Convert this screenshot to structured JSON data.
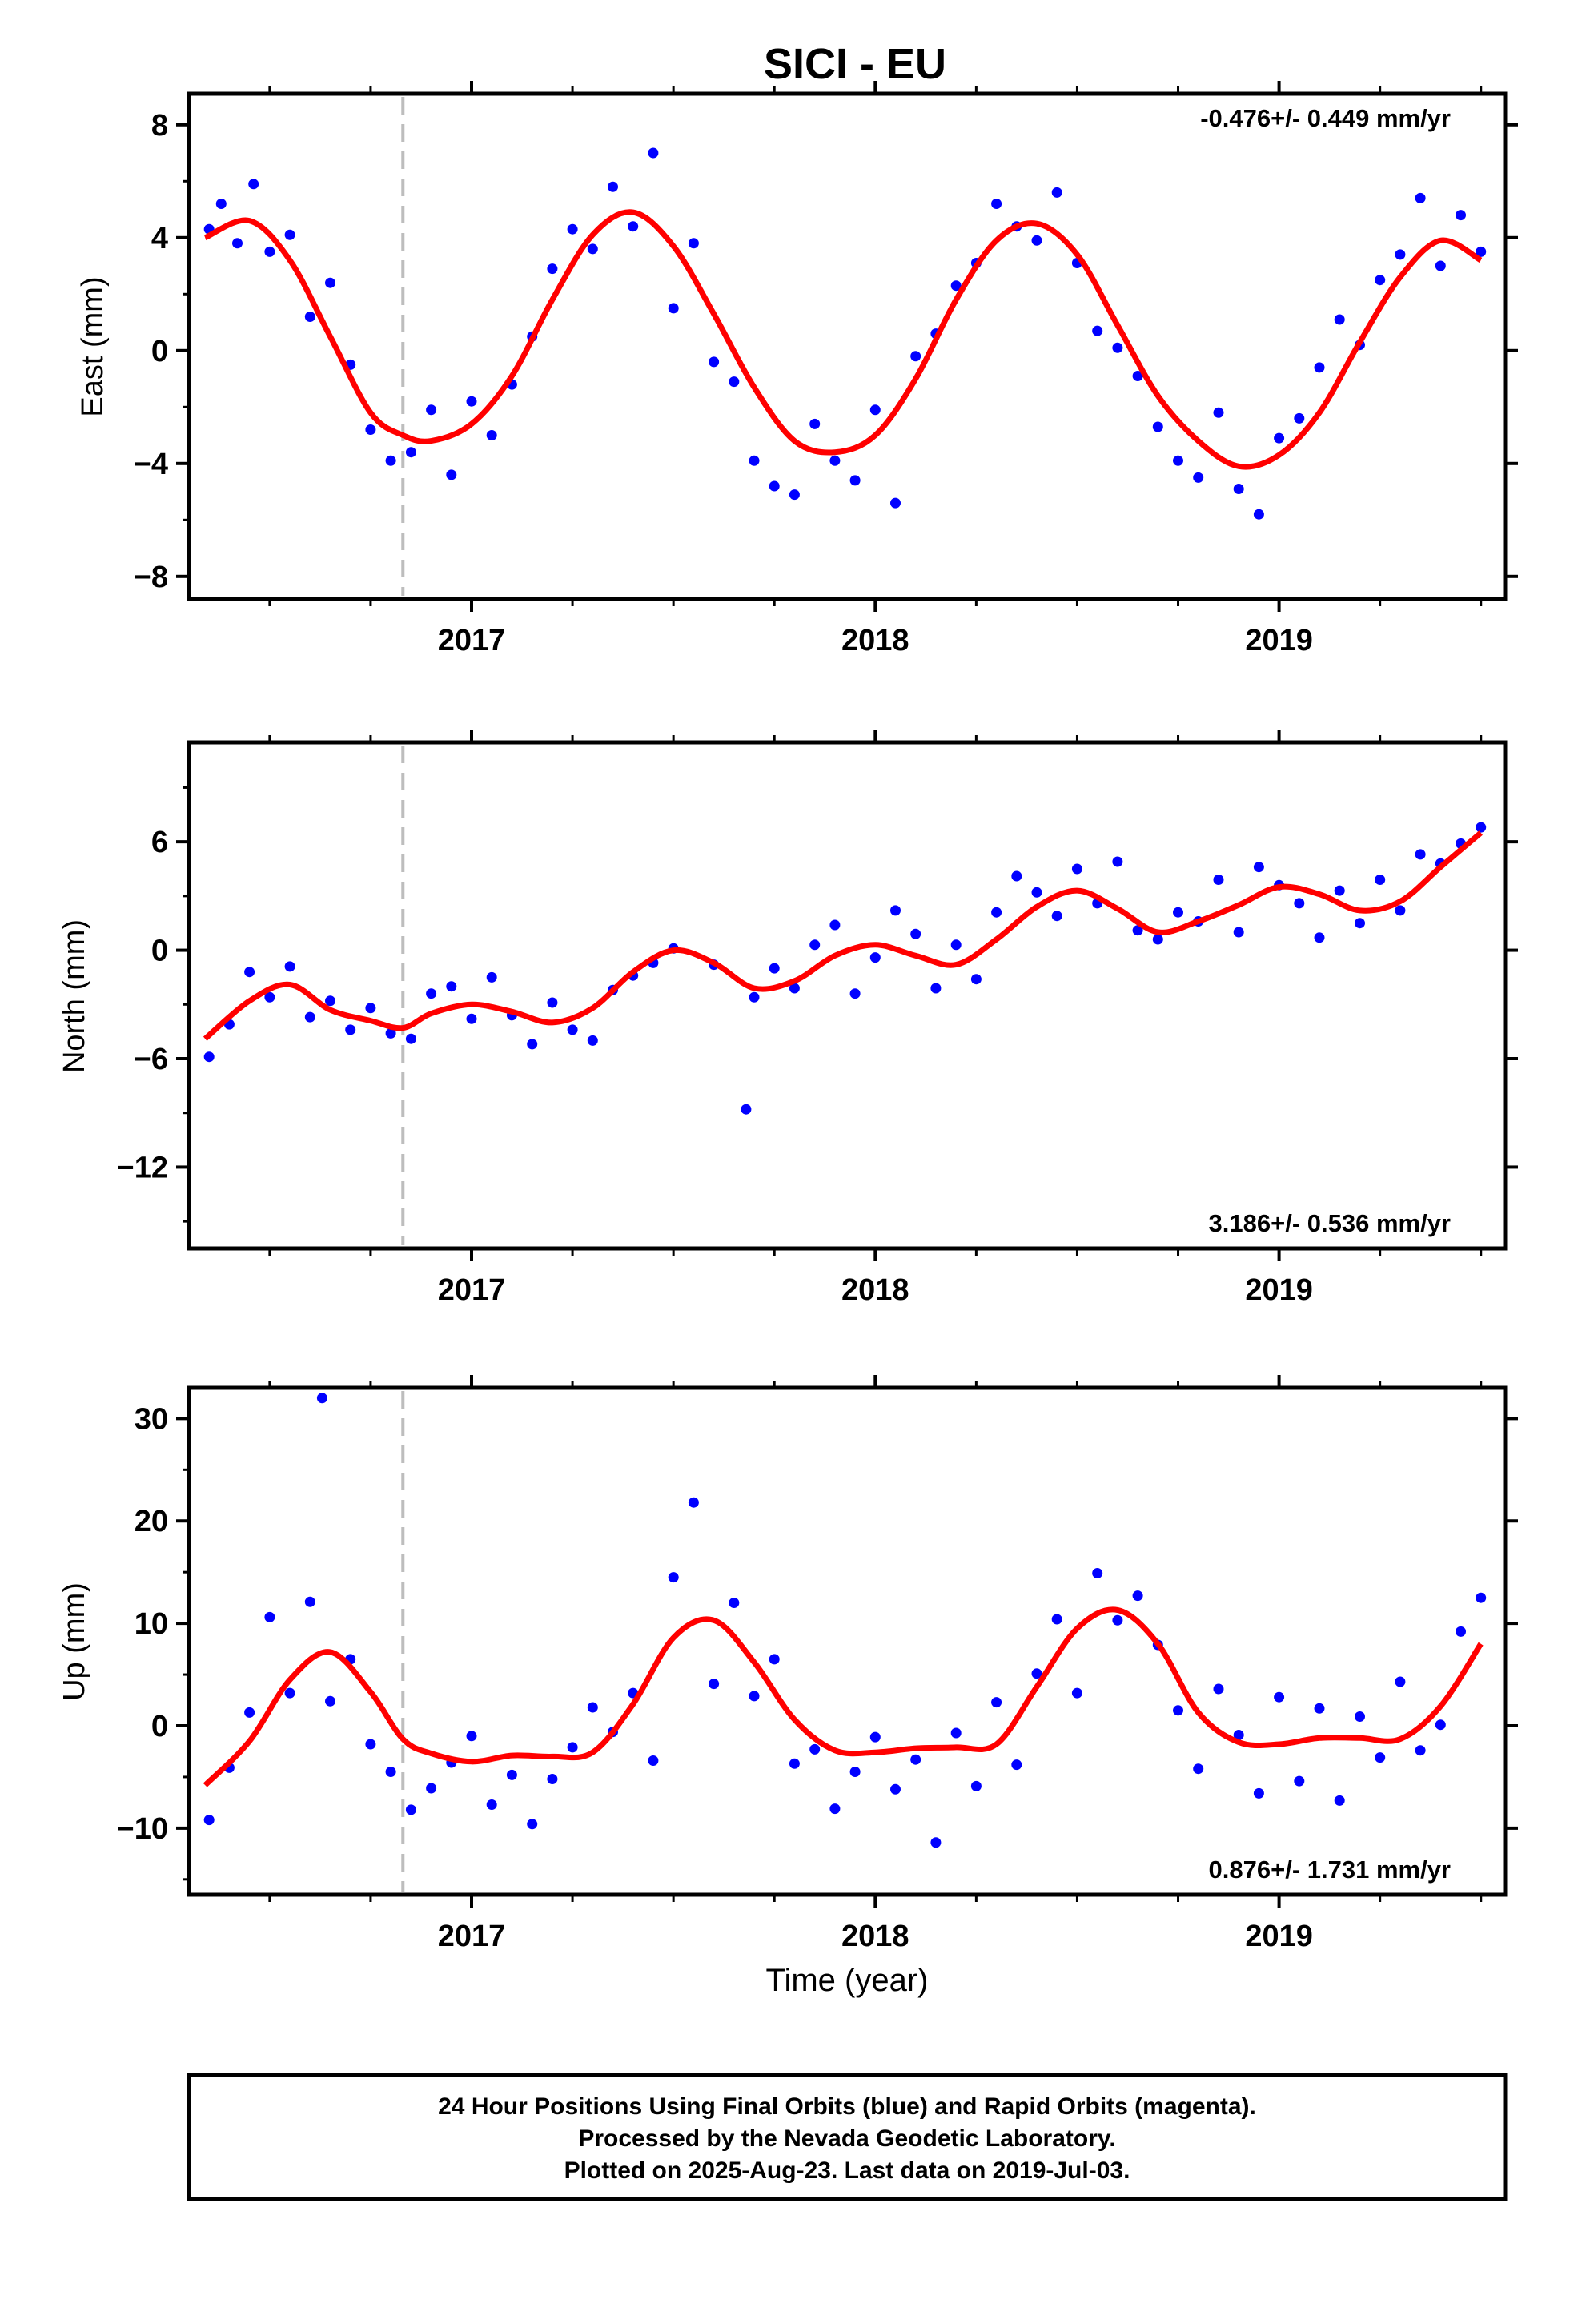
{
  "title": "SICI - EU",
  "xlabel": "Time (year)",
  "footer": {
    "line1": "24 Hour Positions Using Final Orbits (blue) and Rapid Orbits (magenta).",
    "line2": "Processed by the Nevada Geodetic Laboratory.",
    "line3": "Plotted on 2025-Aug-23. Last data on 2019-Jul-03."
  },
  "colors": {
    "points": "#0000ff",
    "model": "#ff0000",
    "event_line": "#bdbdbd",
    "frame": "#000000"
  },
  "chart_data": [
    {
      "type": "scatter",
      "component": "East",
      "ylabel": "East (mm)",
      "rate_label": "-0.476+/- 0.449 mm/yr",
      "rate_position": "top-right",
      "xlim": [
        2016.3,
        2019.56
      ],
      "ylim": [
        -8.8,
        9.1
      ],
      "x_ticks": [
        2017,
        2018,
        2019
      ],
      "y_ticks": [
        -8,
        -4,
        0,
        4,
        8
      ],
      "event_line_x": 2016.83,
      "model_curve": {
        "x": [
          2016.34,
          2016.45,
          2016.55,
          2016.65,
          2016.75,
          2016.83,
          2016.9,
          2017.0,
          2017.1,
          2017.2,
          2017.3,
          2017.4,
          2017.5,
          2017.6,
          2017.7,
          2017.8,
          2017.9,
          2018.0,
          2018.1,
          2018.2,
          2018.3,
          2018.4,
          2018.5,
          2018.6,
          2018.7,
          2018.8,
          2018.9,
          2019.0,
          2019.1,
          2019.2,
          2019.3,
          2019.4,
          2019.5
        ],
        "y": [
          4.0,
          4.6,
          3.2,
          0.5,
          -2.2,
          -3.0,
          -3.2,
          -2.6,
          -0.9,
          1.8,
          4.1,
          4.9,
          3.7,
          1.3,
          -1.3,
          -3.2,
          -3.6,
          -3.0,
          -1.0,
          1.8,
          3.9,
          4.5,
          3.4,
          0.9,
          -1.6,
          -3.2,
          -4.1,
          -3.7,
          -2.2,
          0.3,
          2.6,
          3.9,
          3.2
        ]
      },
      "series": [
        {
          "name": "Final Orbits",
          "x": [
            2016.35,
            2016.38,
            2016.42,
            2016.46,
            2016.5,
            2016.55,
            2016.6,
            2016.65,
            2016.7,
            2016.75,
            2016.8,
            2016.85,
            2016.9,
            2016.95,
            2017.0,
            2017.05,
            2017.1,
            2017.15,
            2017.2,
            2017.25,
            2017.3,
            2017.35,
            2017.4,
            2017.45,
            2017.5,
            2017.55,
            2017.6,
            2017.65,
            2017.7,
            2017.75,
            2017.8,
            2017.85,
            2017.9,
            2017.95,
            2018.0,
            2018.05,
            2018.1,
            2018.15,
            2018.2,
            2018.25,
            2018.3,
            2018.35,
            2018.4,
            2018.45,
            2018.5,
            2018.55,
            2018.6,
            2018.65,
            2018.7,
            2018.75,
            2018.8,
            2018.85,
            2018.9,
            2018.95,
            2019.0,
            2019.05,
            2019.1,
            2019.15,
            2019.2,
            2019.25,
            2019.3,
            2019.35,
            2019.4,
            2019.45,
            2019.5
          ],
          "y": [
            4.3,
            5.2,
            3.8,
            5.9,
            3.5,
            4.1,
            1.2,
            2.4,
            -0.5,
            -2.8,
            -3.9,
            -3.6,
            -2.1,
            -4.4,
            -1.8,
            -3.0,
            -1.2,
            0.5,
            2.9,
            4.3,
            3.6,
            5.8,
            4.4,
            7.0,
            1.5,
            3.8,
            -0.4,
            -1.1,
            -3.9,
            -4.8,
            -5.1,
            -2.6,
            -3.9,
            -4.6,
            -2.1,
            -5.4,
            -0.2,
            0.6,
            2.3,
            3.1,
            5.2,
            4.4,
            3.9,
            5.6,
            3.1,
            0.7,
            0.1,
            -0.9,
            -2.7,
            -3.9,
            -4.5,
            -2.2,
            -4.9,
            -5.8,
            -3.1,
            -2.4,
            -0.6,
            1.1,
            0.2,
            2.5,
            3.4,
            5.4,
            3.0,
            4.8,
            3.5
          ]
        }
      ]
    },
    {
      "type": "scatter",
      "component": "North",
      "ylabel": "North (mm)",
      "rate_label": "3.186+/- 0.536 mm/yr",
      "rate_position": "bottom-right",
      "xlim": [
        2016.3,
        2019.56
      ],
      "ylim": [
        -16.5,
        11.5
      ],
      "x_ticks": [
        2017,
        2018,
        2019
      ],
      "y_ticks": [
        -12,
        -6,
        0,
        6
      ],
      "event_line_x": 2016.83,
      "model_curve": {
        "x": [
          2016.34,
          2016.45,
          2016.55,
          2016.65,
          2016.75,
          2016.83,
          2016.9,
          2017.0,
          2017.1,
          2017.2,
          2017.3,
          2017.4,
          2017.5,
          2017.6,
          2017.7,
          2017.8,
          2017.9,
          2018.0,
          2018.1,
          2018.2,
          2018.3,
          2018.4,
          2018.5,
          2018.6,
          2018.7,
          2018.8,
          2018.9,
          2019.0,
          2019.1,
          2019.2,
          2019.3,
          2019.4,
          2019.5
        ],
        "y": [
          -4.9,
          -2.8,
          -1.9,
          -3.3,
          -3.9,
          -4.3,
          -3.5,
          -3.0,
          -3.4,
          -4.0,
          -3.2,
          -1.2,
          0.0,
          -0.7,
          -2.1,
          -1.7,
          -0.3,
          0.3,
          -0.3,
          -0.8,
          0.6,
          2.4,
          3.3,
          2.3,
          1.0,
          1.6,
          2.5,
          3.5,
          3.1,
          2.2,
          2.7,
          4.6,
          6.5
        ]
      },
      "series": [
        {
          "name": "Final Orbits",
          "x": [
            2016.35,
            2016.4,
            2016.45,
            2016.5,
            2016.55,
            2016.6,
            2016.65,
            2016.7,
            2016.75,
            2016.8,
            2016.85,
            2016.9,
            2016.95,
            2017.0,
            2017.05,
            2017.1,
            2017.15,
            2017.2,
            2017.25,
            2017.3,
            2017.35,
            2017.4,
            2017.45,
            2017.5,
            2017.6,
            2017.68,
            2017.7,
            2017.75,
            2017.8,
            2017.85,
            2017.9,
            2017.95,
            2018.0,
            2018.05,
            2018.1,
            2018.15,
            2018.2,
            2018.25,
            2018.3,
            2018.35,
            2018.4,
            2018.45,
            2018.5,
            2018.55,
            2018.6,
            2018.65,
            2018.7,
            2018.75,
            2018.8,
            2018.85,
            2018.9,
            2018.95,
            2019.0,
            2019.05,
            2019.1,
            2019.15,
            2019.2,
            2019.25,
            2019.3,
            2019.35,
            2019.4,
            2019.45,
            2019.5
          ],
          "y": [
            -5.9,
            -4.1,
            -1.2,
            -2.6,
            -0.9,
            -3.7,
            -2.8,
            -4.4,
            -3.2,
            -4.6,
            -4.9,
            -2.4,
            -2.0,
            -3.8,
            -1.5,
            -3.6,
            -5.2,
            -2.9,
            -4.4,
            -5.0,
            -2.2,
            -1.4,
            -0.7,
            0.1,
            -0.8,
            -8.8,
            -2.6,
            -1.0,
            -2.1,
            0.3,
            1.4,
            -2.4,
            -0.4,
            2.2,
            0.9,
            -2.1,
            0.3,
            -1.6,
            2.1,
            4.1,
            3.2,
            1.9,
            4.5,
            2.6,
            4.9,
            1.1,
            0.6,
            2.1,
            1.6,
            3.9,
            1.0,
            4.6,
            3.6,
            2.6,
            0.7,
            3.3,
            1.5,
            3.9,
            2.2,
            5.3,
            4.8,
            5.9,
            6.8
          ]
        }
      ]
    },
    {
      "type": "scatter",
      "component": "Up",
      "ylabel": "Up (mm)",
      "rate_label": "0.876+/- 1.731 mm/yr",
      "rate_position": "bottom-right",
      "xlim": [
        2016.3,
        2019.56
      ],
      "ylim": [
        -16.5,
        33.0
      ],
      "x_ticks": [
        2017,
        2018,
        2019
      ],
      "y_ticks": [
        -10,
        0,
        10,
        20,
        30
      ],
      "event_line_x": 2016.83,
      "model_curve": {
        "x": [
          2016.34,
          2016.45,
          2016.55,
          2016.65,
          2016.75,
          2016.83,
          2016.9,
          2017.0,
          2017.1,
          2017.2,
          2017.3,
          2017.4,
          2017.5,
          2017.6,
          2017.7,
          2017.8,
          2017.9,
          2018.0,
          2018.1,
          2018.2,
          2018.3,
          2018.4,
          2018.5,
          2018.6,
          2018.7,
          2018.8,
          2018.9,
          2019.0,
          2019.1,
          2019.2,
          2019.3,
          2019.4,
          2019.5
        ],
        "y": [
          -5.8,
          -1.5,
          4.5,
          7.2,
          3.3,
          -1.3,
          -2.7,
          -3.5,
          -2.9,
          -3.0,
          -2.6,
          2.1,
          8.6,
          10.3,
          6.2,
          0.6,
          -2.4,
          -2.6,
          -2.2,
          -2.1,
          -1.8,
          3.8,
          9.5,
          11.3,
          8.0,
          1.3,
          -1.6,
          -1.8,
          -1.2,
          -1.2,
          -1.3,
          1.9,
          8.0
        ]
      },
      "series": [
        {
          "name": "Final Orbits",
          "x": [
            2016.35,
            2016.4,
            2016.45,
            2016.5,
            2016.55,
            2016.6,
            2016.63,
            2016.65,
            2016.7,
            2016.75,
            2016.8,
            2016.85,
            2016.9,
            2016.95,
            2017.0,
            2017.05,
            2017.1,
            2017.15,
            2017.2,
            2017.25,
            2017.3,
            2017.35,
            2017.4,
            2017.45,
            2017.5,
            2017.55,
            2017.6,
            2017.65,
            2017.7,
            2017.75,
            2017.8,
            2017.85,
            2017.9,
            2017.95,
            2018.0,
            2018.05,
            2018.1,
            2018.15,
            2018.2,
            2018.25,
            2018.3,
            2018.35,
            2018.4,
            2018.45,
            2018.5,
            2018.55,
            2018.6,
            2018.65,
            2018.7,
            2018.75,
            2018.8,
            2018.85,
            2018.9,
            2018.95,
            2019.0,
            2019.05,
            2019.1,
            2019.15,
            2019.2,
            2019.25,
            2019.3,
            2019.35,
            2019.4,
            2019.45,
            2019.5
          ],
          "y": [
            -9.2,
            -4.1,
            1.3,
            10.6,
            3.2,
            12.1,
            32.0,
            2.4,
            6.5,
            -1.8,
            -4.5,
            -8.2,
            -6.1,
            -3.6,
            -1.0,
            -7.7,
            -4.8,
            -9.6,
            -5.2,
            -2.1,
            1.8,
            -0.6,
            3.2,
            -3.4,
            14.5,
            21.8,
            4.1,
            12.0,
            2.9,
            6.5,
            -3.7,
            -2.3,
            -8.1,
            -4.5,
            -1.1,
            -6.2,
            -3.3,
            -11.4,
            -0.7,
            -5.9,
            2.3,
            -3.8,
            5.1,
            10.4,
            3.2,
            14.9,
            10.3,
            12.7,
            7.9,
            1.5,
            -4.2,
            3.6,
            -0.9,
            -6.6,
            2.8,
            -5.4,
            1.7,
            -7.3,
            0.9,
            -3.1,
            4.3,
            -2.4,
            0.1,
            9.2,
            12.5
          ]
        }
      ]
    }
  ]
}
